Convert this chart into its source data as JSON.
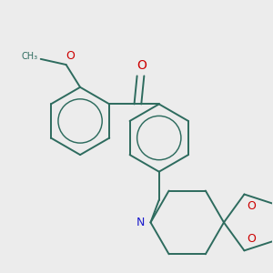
{
  "background_color": "#ececec",
  "bond_color": "#2d6b5e",
  "nitrogen_color": "#1a1acc",
  "oxygen_color": "#cc0000",
  "bond_width": 1.4,
  "figsize": [
    3.0,
    3.0
  ],
  "dpi": 100,
  "methoxy_label": "O",
  "carbonyl_label": "O",
  "nitrogen_label": "N",
  "o1_label": "O",
  "o2_label": "O"
}
